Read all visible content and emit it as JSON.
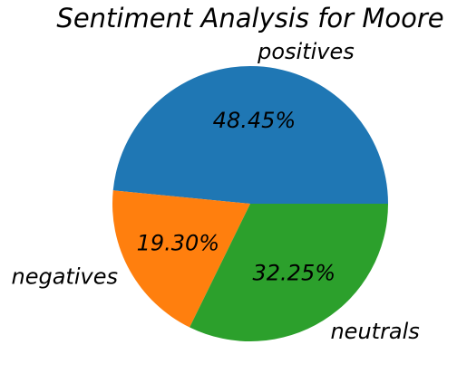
{
  "chart_data": {
    "type": "pie",
    "title": "Sentiment Analysis for Moore",
    "labels": [
      "positives",
      "negatives",
      "neutrals"
    ],
    "values": [
      48.45,
      19.3,
      32.25
    ],
    "value_labels": [
      "48.45%",
      "19.30%",
      "32.25%"
    ],
    "colors": [
      "#1f77b4",
      "#ff7f0e",
      "#2ca02c"
    ],
    "start_angle_deg": 0,
    "direction": "counterclockwise",
    "legend": "none"
  }
}
